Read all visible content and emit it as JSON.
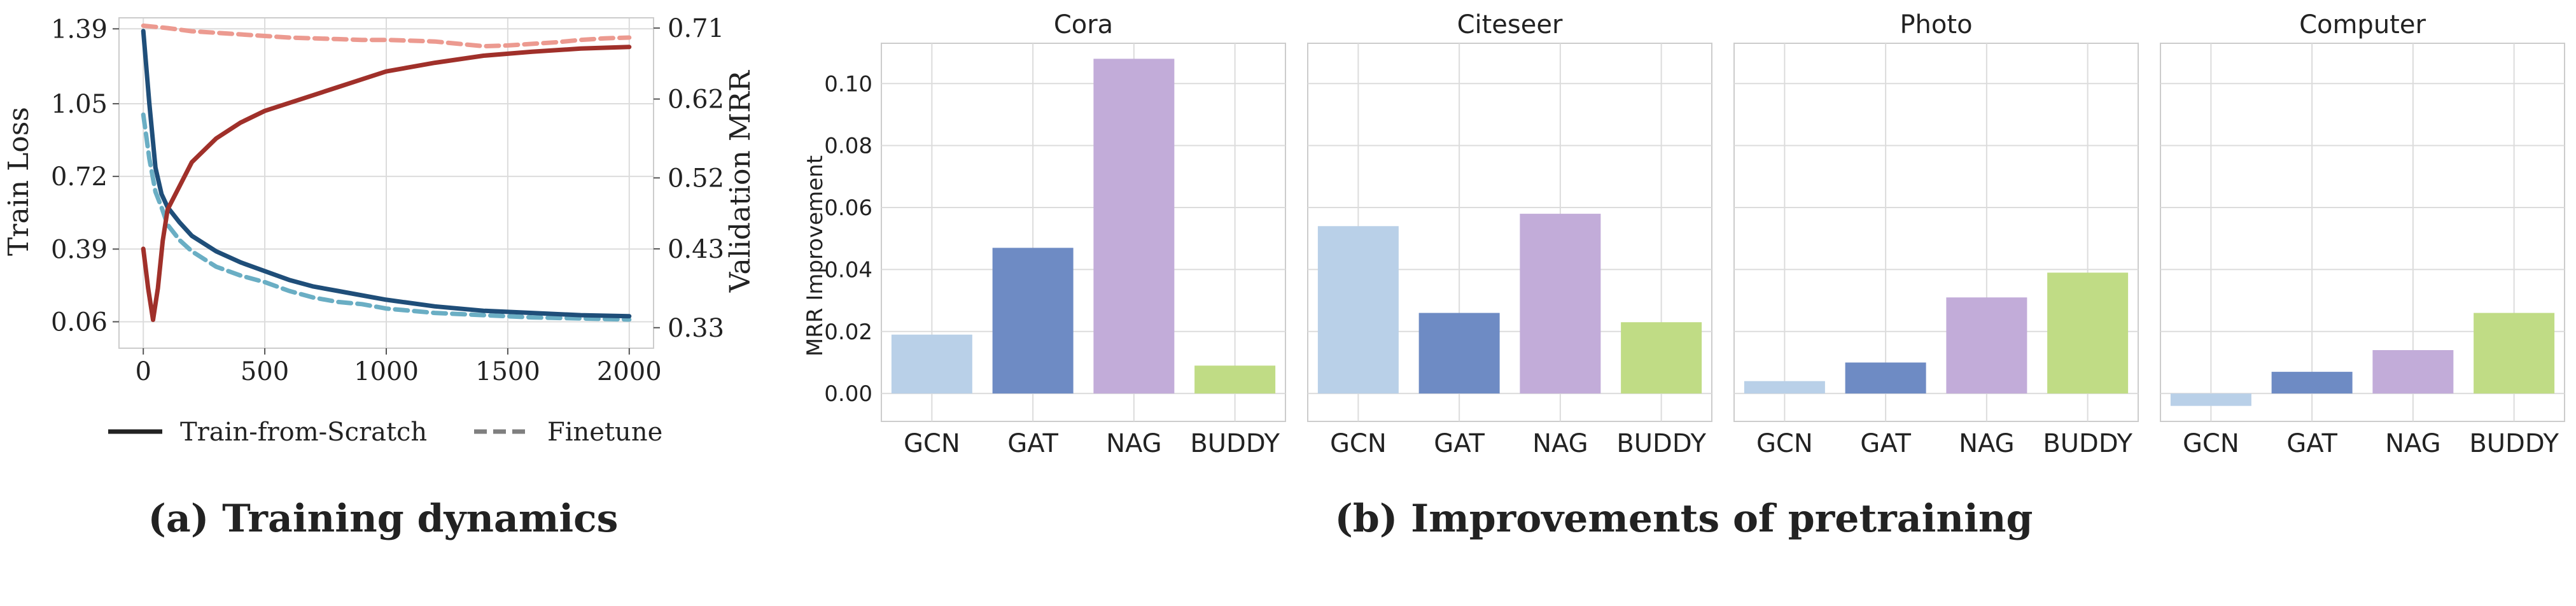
{
  "figure_a": {
    "caption": "(a) Training dynamics",
    "legend": {
      "scratch": "Train-from-Scratch",
      "finetune": "Finetune"
    }
  },
  "figure_b": {
    "caption": "(b) Improvements of pretraining"
  },
  "colors": {
    "scratch_loss": "#1f4e79",
    "finetune_loss": "#6aaec4",
    "scratch_mrr": "#a0302a",
    "finetune_mrr": "#ec9a90",
    "GCN": "#b9d0e8",
    "GAT": "#6e8bc4",
    "NAG": "#c2acd9",
    "BUDDY": "#c0dc85",
    "grid": "#dcdcdc",
    "frame": "#cccccc"
  },
  "chart_data": [
    {
      "type": "line",
      "xlabel": "",
      "ylabel": "Train Loss",
      "y2label": "Validation MRR",
      "x_ticks": [
        0,
        500,
        1000,
        1500,
        2000
      ],
      "xlim": [
        -100,
        2100
      ],
      "ylim": [
        -0.06,
        1.44
      ],
      "y_ticks": [
        "1.39",
        "1.05",
        "0.72",
        "0.39",
        "0.06"
      ],
      "y_tick_values": [
        1.39,
        1.05,
        0.72,
        0.39,
        0.06
      ],
      "y2lim": [
        0.304,
        0.723
      ],
      "y2_ticks": [
        "0.71",
        "0.62",
        "0.52",
        "0.43",
        "0.33"
      ],
      "y2_tick_values": [
        0.71,
        0.62,
        0.52,
        0.43,
        0.33
      ],
      "grid": true,
      "legend_position": "bottom",
      "series": [
        {
          "name": "Train-from-Scratch",
          "metric": "Train Loss",
          "axis": "left",
          "style": "solid",
          "x": [
            0,
            25,
            50,
            75,
            100,
            150,
            200,
            300,
            400,
            500,
            600,
            700,
            800,
            900,
            1000,
            1200,
            1400,
            1600,
            1800,
            2000
          ],
          "y": [
            1.38,
            1.05,
            0.76,
            0.64,
            0.58,
            0.51,
            0.45,
            0.38,
            0.33,
            0.29,
            0.25,
            0.22,
            0.2,
            0.18,
            0.16,
            0.13,
            0.11,
            0.1,
            0.09,
            0.085
          ]
        },
        {
          "name": "Finetune",
          "metric": "Train Loss",
          "axis": "left",
          "style": "dashed",
          "x": [
            0,
            25,
            50,
            75,
            100,
            150,
            200,
            300,
            400,
            500,
            600,
            700,
            800,
            900,
            1000,
            1200,
            1400,
            1600,
            1800,
            2000
          ],
          "y": [
            1.0,
            0.8,
            0.65,
            0.58,
            0.5,
            0.43,
            0.38,
            0.31,
            0.27,
            0.24,
            0.2,
            0.17,
            0.15,
            0.14,
            0.12,
            0.1,
            0.09,
            0.08,
            0.075,
            0.07
          ]
        },
        {
          "name": "Train-from-Scratch",
          "metric": "Validation MRR",
          "axis": "right",
          "style": "solid",
          "x": [
            0,
            20,
            40,
            60,
            80,
            100,
            150,
            200,
            300,
            400,
            500,
            600,
            700,
            800,
            900,
            1000,
            1200,
            1400,
            1600,
            1800,
            2000
          ],
          "y": [
            0.43,
            0.38,
            0.34,
            0.38,
            0.44,
            0.48,
            0.51,
            0.54,
            0.57,
            0.59,
            0.605,
            0.615,
            0.625,
            0.635,
            0.645,
            0.655,
            0.666,
            0.675,
            0.68,
            0.684,
            0.686
          ]
        },
        {
          "name": "Finetune",
          "metric": "Validation MRR",
          "axis": "right",
          "style": "dashed",
          "x": [
            0,
            100,
            200,
            300,
            400,
            500,
            600,
            700,
            800,
            900,
            1000,
            1100,
            1200,
            1300,
            1400,
            1500,
            1600,
            1700,
            1800,
            1900,
            2000
          ],
          "y": [
            0.713,
            0.71,
            0.706,
            0.704,
            0.702,
            0.7,
            0.698,
            0.697,
            0.696,
            0.695,
            0.695,
            0.694,
            0.693,
            0.69,
            0.687,
            0.688,
            0.69,
            0.692,
            0.695,
            0.697,
            0.698
          ]
        }
      ]
    },
    {
      "type": "bar",
      "title": "Cora",
      "ylabel": "MRR Improvement",
      "categories": [
        "GCN",
        "GAT",
        "NAG",
        "BUDDY"
      ],
      "values": [
        0.019,
        0.047,
        0.108,
        0.009
      ],
      "ylim": [
        -0.009,
        0.113
      ],
      "y_ticks": [
        0.0,
        0.02,
        0.04,
        0.06,
        0.08,
        0.1
      ],
      "y_tick_labels": [
        "0.00",
        "0.02",
        "0.04",
        "0.06",
        "0.08",
        "0.10"
      ],
      "grid": true
    },
    {
      "type": "bar",
      "title": "Citeseer",
      "categories": [
        "GCN",
        "GAT",
        "NAG",
        "BUDDY"
      ],
      "values": [
        0.054,
        0.026,
        0.058,
        0.023
      ],
      "ylim": [
        -0.009,
        0.113
      ],
      "grid": true
    },
    {
      "type": "bar",
      "title": "Photo",
      "categories": [
        "GCN",
        "GAT",
        "NAG",
        "BUDDY"
      ],
      "values": [
        0.004,
        0.01,
        0.031,
        0.039
      ],
      "ylim": [
        -0.009,
        0.113
      ],
      "grid": true
    },
    {
      "type": "bar",
      "title": "Computer",
      "categories": [
        "GCN",
        "GAT",
        "NAG",
        "BUDDY"
      ],
      "values": [
        -0.004,
        0.007,
        0.014,
        0.026
      ],
      "ylim": [
        -0.009,
        0.113
      ],
      "grid": true
    }
  ]
}
